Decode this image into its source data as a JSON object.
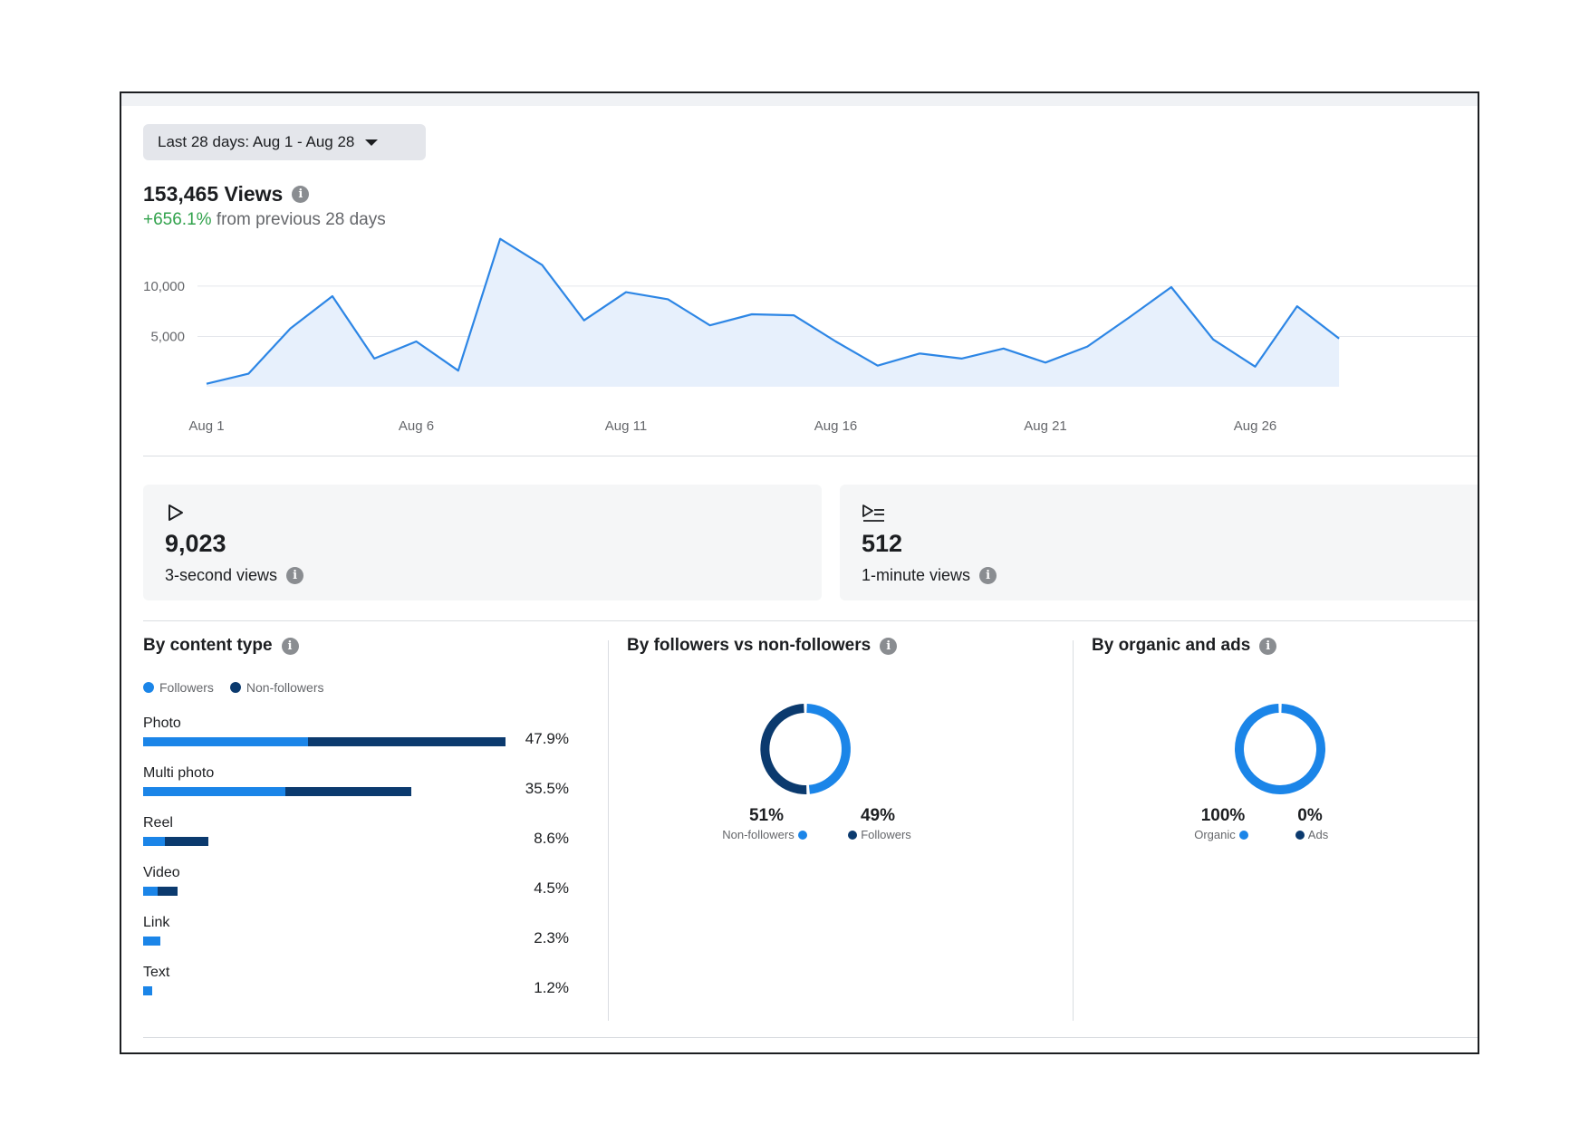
{
  "date_range": {
    "label": "Last 28 days: Aug 1 - Aug 28"
  },
  "views": {
    "title": "153,465 Views",
    "change": "+656.1%",
    "change_suffix": "from previous 28 days"
  },
  "chart_data": {
    "type": "area",
    "x": [
      "Aug 1",
      "Aug 2",
      "Aug 3",
      "Aug 4",
      "Aug 5",
      "Aug 6",
      "Aug 7",
      "Aug 8",
      "Aug 9",
      "Aug 10",
      "Aug 11",
      "Aug 12",
      "Aug 13",
      "Aug 14",
      "Aug 15",
      "Aug 16",
      "Aug 17",
      "Aug 18",
      "Aug 19",
      "Aug 20",
      "Aug 21",
      "Aug 22",
      "Aug 23",
      "Aug 24",
      "Aug 25",
      "Aug 26",
      "Aug 27",
      "Aug 28"
    ],
    "values": [
      300,
      1300,
      5800,
      9000,
      2800,
      4500,
      1600,
      14700,
      12100,
      6600,
      9400,
      8700,
      6100,
      7200,
      7100,
      4500,
      2100,
      3300,
      2800,
      3800,
      2400,
      4000,
      6900,
      9900,
      4700,
      2000,
      8000,
      4800
    ],
    "yticks": [
      "5,000",
      "10,000"
    ],
    "ytick_values": [
      5000,
      10000
    ],
    "xticks": [
      "Aug 1",
      "Aug 6",
      "Aug 11",
      "Aug 16",
      "Aug 21",
      "Aug 26"
    ],
    "ylim": [
      0,
      15000
    ],
    "grid": true,
    "line_color": "#2d86e5",
    "fill_color": "#e7f0fc"
  },
  "stats": [
    {
      "value": "9,023",
      "label": "3-second views",
      "icon": "play-icon"
    },
    {
      "value": "512",
      "label": "1-minute views",
      "icon": "play-list-icon"
    }
  ],
  "content_type": {
    "title": "By content type",
    "legend": [
      {
        "label": "Followers",
        "color": "#1b85e8"
      },
      {
        "label": "Non-followers",
        "color": "#0b3a6e"
      }
    ],
    "rows": [
      {
        "label": "Photo",
        "pct": "47.9%",
        "followers": 47.9,
        "nonfollowers": 47.9,
        "followers_share": 0.455
      },
      {
        "label": "Multi photo",
        "pct": "35.5%",
        "followers_share": 0.53,
        "total": 35.5
      },
      {
        "label": "Reel",
        "pct": "8.6%",
        "followers_share": 0.33,
        "total": 8.6
      },
      {
        "label": "Video",
        "pct": "4.5%",
        "followers_share": 0.43,
        "total": 4.5
      },
      {
        "label": "Link",
        "pct": "2.3%",
        "followers_share": 1.0,
        "total": 2.3
      },
      {
        "label": "Text",
        "pct": "1.2%",
        "followers_share": 1.0,
        "total": 1.2
      }
    ]
  },
  "followers_split": {
    "title": "By followers vs non-followers",
    "items": [
      {
        "value": "51%",
        "label": "Non-followers",
        "share": 51,
        "color": "#0b3a6e"
      },
      {
        "value": "49%",
        "label": "Followers",
        "share": 49,
        "color": "#1b85e8"
      }
    ]
  },
  "organic_ads": {
    "title": "By organic and ads",
    "items": [
      {
        "value": "100%",
        "label": "Organic",
        "share": 100,
        "color": "#1b85e8"
      },
      {
        "value": "0%",
        "label": "Ads",
        "share": 0,
        "color": "#0b3a6e"
      }
    ]
  },
  "colors": {
    "followers": "#1b85e8",
    "non_followers": "#0b3a6e",
    "positive": "#31a24c"
  }
}
